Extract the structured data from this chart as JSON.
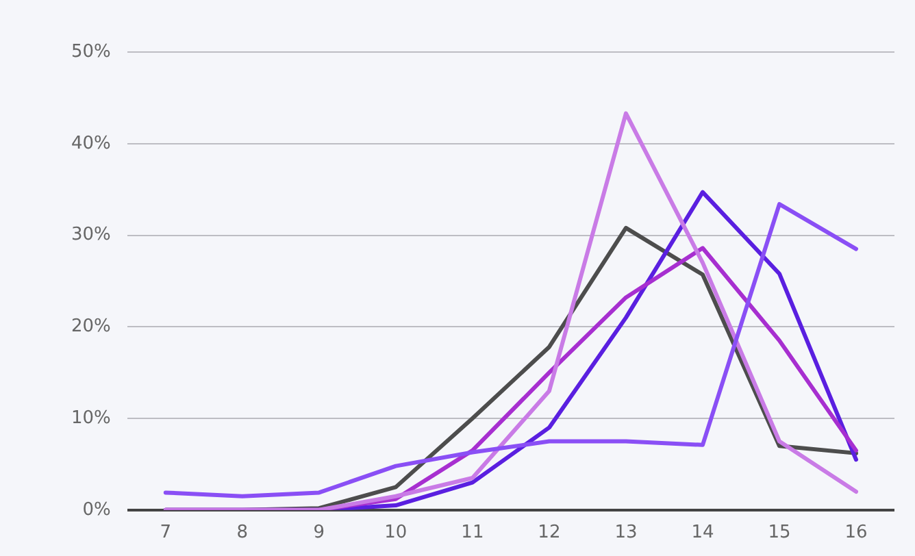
{
  "chart_data": {
    "type": "line",
    "categories": [
      "7",
      "8",
      "9",
      "10",
      "11",
      "12",
      "13",
      "14",
      "15",
      "16"
    ],
    "series": [
      {
        "color": "#8a4ff5",
        "values": [
          1.9,
          1.5,
          1.9,
          4.8,
          6.3,
          7.5,
          7.5,
          7.1,
          33.4,
          28.5
        ]
      },
      {
        "color": "#c97be6",
        "values": [
          0,
          0,
          0,
          1.5,
          3.5,
          13,
          43.3,
          27,
          7.5,
          2
        ]
      },
      {
        "color": "#a72fd0",
        "values": [
          0,
          0,
          0,
          1.2,
          6.5,
          15,
          23.2,
          28.6,
          18.5,
          6.5
        ]
      },
      {
        "color": "#5a1fe0",
        "values": [
          0,
          0,
          0,
          0.5,
          3,
          9,
          21,
          34.7,
          25.8,
          5.5
        ]
      },
      {
        "color": "#4d4d4d",
        "values": [
          0,
          0,
          0.2,
          2.5,
          10,
          17.8,
          30.8,
          25.7,
          7,
          6.2
        ]
      }
    ],
    "ylim": [
      0,
      50
    ],
    "yticks": [
      {
        "value": 0,
        "label": "0%"
      },
      {
        "value": 10,
        "label": "10%"
      },
      {
        "value": 20,
        "label": "20%"
      },
      {
        "value": 30,
        "label": "30%"
      },
      {
        "value": 40,
        "label": "40%"
      },
      {
        "value": 50,
        "label": "50%"
      }
    ],
    "grid": "y",
    "legend": false,
    "marker": "none",
    "line_style": "solid"
  }
}
